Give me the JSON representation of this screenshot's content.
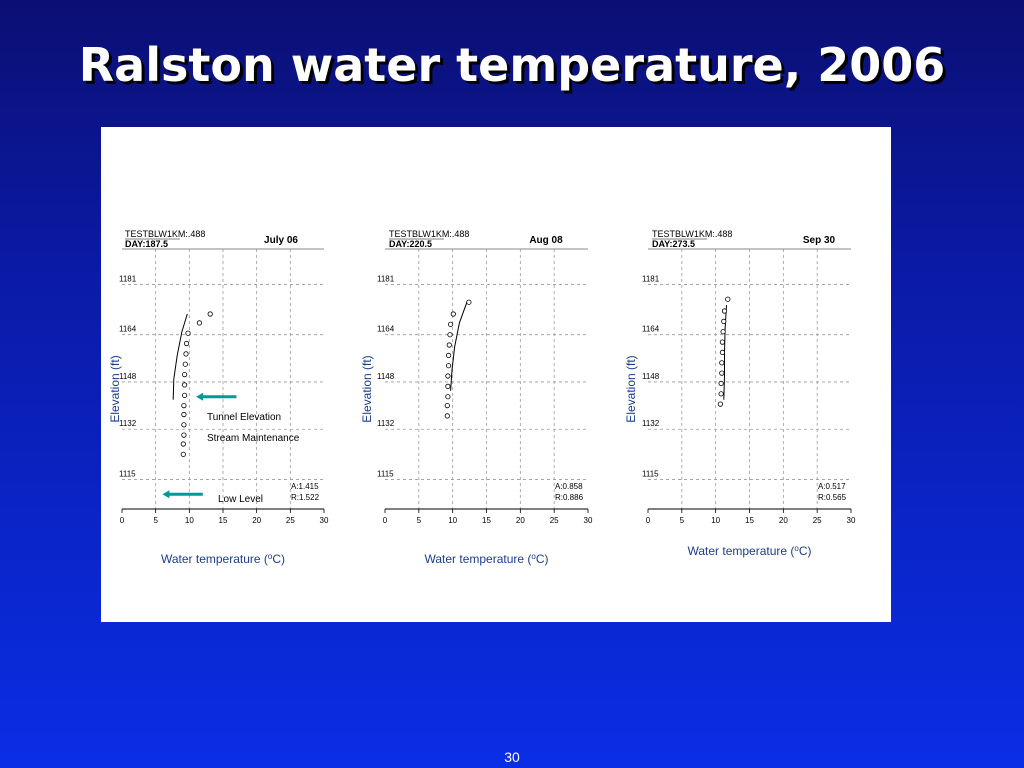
{
  "slide": {
    "title": "Ralston water temperature, 2006",
    "page_number": "30"
  },
  "colors": {
    "arrow": "#009999",
    "axis_label": "#1a3e8c"
  },
  "chart_data": [
    {
      "type": "scatter",
      "panel": "July 06",
      "header_line1": "TESTBLW1KM:.488",
      "header_line2": "DAY:187.5",
      "date_label": "July 06",
      "xlabel": "Water temperature (oC)",
      "ylabel": "Elevation (ft)",
      "xlim": [
        0,
        30
      ],
      "ylim": [
        1105,
        1193
      ],
      "xticks": [
        "0",
        "5",
        "10",
        "15",
        "20",
        "25",
        "30"
      ],
      "yticks": [
        {
          "label": "1115",
          "value": 1115
        },
        {
          "label": "1132",
          "value": 1132
        },
        {
          "label": "1148",
          "value": 1148
        },
        {
          "label": "1164",
          "value": 1164
        },
        {
          "label": "1181",
          "value": 1181
        }
      ],
      "grid": true,
      "stats": [
        "A:1.415",
        "R:1.522"
      ],
      "observed": [
        {
          "x": 13.1,
          "y": 1171
        },
        {
          "x": 11.5,
          "y": 1168
        },
        {
          "x": 9.8,
          "y": 1164.5
        },
        {
          "x": 9.6,
          "y": 1161
        },
        {
          "x": 9.5,
          "y": 1157.5
        },
        {
          "x": 9.4,
          "y": 1154
        },
        {
          "x": 9.3,
          "y": 1150.5
        },
        {
          "x": 9.3,
          "y": 1147
        },
        {
          "x": 9.3,
          "y": 1143.5
        },
        {
          "x": 9.2,
          "y": 1140
        },
        {
          "x": 9.2,
          "y": 1137
        },
        {
          "x": 9.2,
          "y": 1133.5
        },
        {
          "x": 9.2,
          "y": 1130
        },
        {
          "x": 9.1,
          "y": 1127
        },
        {
          "x": 9.1,
          "y": 1123.5
        }
      ],
      "model": [
        {
          "x": 9.7,
          "y": 1171
        },
        {
          "x": 8.9,
          "y": 1165
        },
        {
          "x": 8.2,
          "y": 1157
        },
        {
          "x": 7.7,
          "y": 1149
        },
        {
          "x": 7.6,
          "y": 1142
        }
      ],
      "annotations": [
        {
          "text": "Tunnel Elevation"
        },
        {
          "text": "Stream Maintenance"
        },
        {
          "text": "Low Level"
        }
      ],
      "arrows": [
        {
          "from_x": 17,
          "to_x": 11,
          "y": 1143
        },
        {
          "from_x": 12,
          "to_x": 6,
          "y": 1110
        }
      ]
    },
    {
      "type": "scatter",
      "panel": "Aug 08",
      "header_line1": "TESTBLW1KM:.488",
      "header_line2": "DAY:220.5",
      "date_label": "Aug 08",
      "xlabel": "Water temperature (oC)",
      "ylabel": "Elevation (ft)",
      "xlim": [
        0,
        30
      ],
      "ylim": [
        1105,
        1193
      ],
      "xticks": [
        "0",
        "5",
        "10",
        "15",
        "20",
        "25",
        "30"
      ],
      "yticks": [
        {
          "label": "1115",
          "value": 1115
        },
        {
          "label": "1132",
          "value": 1132
        },
        {
          "label": "1148",
          "value": 1148
        },
        {
          "label": "1164",
          "value": 1164
        },
        {
          "label": "1181",
          "value": 1181
        }
      ],
      "grid": true,
      "stats": [
        "A:0.858",
        "R:0.886"
      ],
      "observed": [
        {
          "x": 12.4,
          "y": 1175
        },
        {
          "x": 10.1,
          "y": 1171
        },
        {
          "x": 9.7,
          "y": 1167.5
        },
        {
          "x": 9.6,
          "y": 1164
        },
        {
          "x": 9.5,
          "y": 1160.5
        },
        {
          "x": 9.4,
          "y": 1157
        },
        {
          "x": 9.4,
          "y": 1153.5
        },
        {
          "x": 9.3,
          "y": 1150
        },
        {
          "x": 9.3,
          "y": 1146.5
        },
        {
          "x": 9.3,
          "y": 1143
        },
        {
          "x": 9.2,
          "y": 1140
        },
        {
          "x": 9.2,
          "y": 1136.5
        }
      ],
      "model": [
        {
          "x": 12.1,
          "y": 1175
        },
        {
          "x": 11.0,
          "y": 1168
        },
        {
          "x": 10.3,
          "y": 1160
        },
        {
          "x": 9.9,
          "y": 1152
        },
        {
          "x": 9.7,
          "y": 1145
        }
      ]
    },
    {
      "type": "scatter",
      "panel": "Sep 30",
      "header_line1": "TESTBLW1KM:.488",
      "header_line2": "DAY:273.5",
      "date_label": "Sep 30",
      "xlabel": "Water temperature (oC)",
      "ylabel": "Elevation (ft)",
      "xlim": [
        0,
        30
      ],
      "ylim": [
        1105,
        1193
      ],
      "xticks": [
        "0",
        "5",
        "10",
        "15",
        "20",
        "25",
        "30"
      ],
      "yticks": [
        {
          "label": "1115",
          "value": 1115
        },
        {
          "label": "1132",
          "value": 1132
        },
        {
          "label": "1148",
          "value": 1148
        },
        {
          "label": "1164",
          "value": 1164
        },
        {
          "label": "1181",
          "value": 1181
        }
      ],
      "grid": true,
      "stats": [
        "A:0.517",
        "R:0.565"
      ],
      "observed": [
        {
          "x": 11.8,
          "y": 1176
        },
        {
          "x": 11.3,
          "y": 1172
        },
        {
          "x": 11.2,
          "y": 1168.5
        },
        {
          "x": 11.1,
          "y": 1165
        },
        {
          "x": 11.0,
          "y": 1161.5
        },
        {
          "x": 11.0,
          "y": 1158
        },
        {
          "x": 10.9,
          "y": 1154.5
        },
        {
          "x": 10.9,
          "y": 1151
        },
        {
          "x": 10.8,
          "y": 1147.5
        },
        {
          "x": 10.8,
          "y": 1144
        },
        {
          "x": 10.7,
          "y": 1140.5
        }
      ],
      "model": [
        {
          "x": 11.6,
          "y": 1174
        },
        {
          "x": 11.4,
          "y": 1166
        },
        {
          "x": 11.3,
          "y": 1158
        },
        {
          "x": 11.3,
          "y": 1150
        },
        {
          "x": 11.2,
          "y": 1142
        }
      ]
    }
  ]
}
